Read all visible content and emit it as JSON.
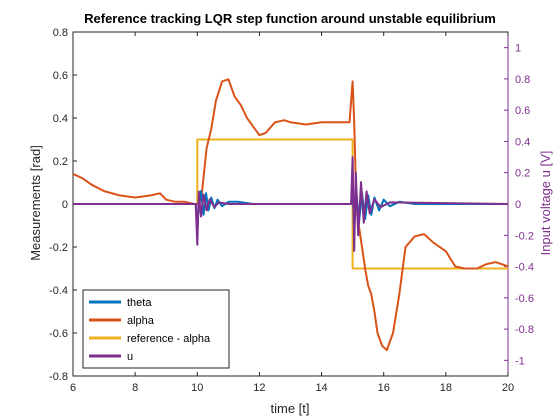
{
  "chart_data": {
    "type": "line",
    "title": "Reference tracking LQR step function around unstable equilibrium",
    "xlabel": "time [t]",
    "ylabel": "Measurements [rad]",
    "y2label": "Input voltage u [V]",
    "xlim": [
      6,
      20
    ],
    "ylim": [
      -0.8,
      0.8
    ],
    "y2lim": [
      -1.1,
      1.1
    ],
    "xticks": [
      "6",
      "8",
      "10",
      "12",
      "14",
      "16",
      "18",
      "20"
    ],
    "yticks": [
      "-0.8",
      "-0.6",
      "-0.4",
      "-0.2",
      "0",
      "0.2",
      "0.4",
      "0.6",
      "0.8"
    ],
    "y2ticks": [
      "-1",
      "-0.8",
      "-0.6",
      "-0.4",
      "-0.2",
      "0",
      "0.2",
      "0.4",
      "0.6",
      "0.8",
      "1"
    ],
    "grid": false,
    "legend_position": "bottom-left",
    "series": [
      {
        "name": "theta",
        "color": "#0072BD",
        "axis": "left",
        "x": [
          6,
          9.95,
          10.0,
          10.05,
          10.12,
          10.2,
          10.28,
          10.36,
          10.45,
          10.55,
          10.65,
          10.8,
          11.0,
          11.3,
          11.8,
          14.95,
          15.0,
          15.05,
          15.12,
          15.2,
          15.3,
          15.4,
          15.5,
          15.6,
          15.7,
          15.85,
          16.0,
          16.2,
          16.5,
          17.0,
          20
        ],
        "values": [
          0,
          0,
          -0.08,
          -0.02,
          0.06,
          -0.05,
          0.05,
          -0.03,
          0.03,
          -0.02,
          0.02,
          -0.01,
          0.01,
          0.01,
          0,
          0,
          0.07,
          -0.12,
          0.06,
          -0.09,
          0.05,
          -0.07,
          0.04,
          -0.05,
          0.03,
          -0.03,
          0.02,
          -0.01,
          0.01,
          0,
          0
        ]
      },
      {
        "name": "alpha",
        "color": "#D95319",
        "axis": "left",
        "x": [
          6,
          6.3,
          6.6,
          7.0,
          7.5,
          8.0,
          8.5,
          8.8,
          9.0,
          9.3,
          9.6,
          9.9,
          10.05,
          10.15,
          10.3,
          10.45,
          10.6,
          10.8,
          11.0,
          11.2,
          11.4,
          11.6,
          11.8,
          12.0,
          12.2,
          12.5,
          12.8,
          13.0,
          13.5,
          14.0,
          14.5,
          14.9,
          15.0,
          15.05,
          15.1,
          15.15,
          15.25,
          15.4,
          15.5,
          15.6,
          15.7,
          15.8,
          15.95,
          16.1,
          16.3,
          16.5,
          16.7,
          17.0,
          17.3,
          17.6,
          18.0,
          18.3,
          18.6,
          19.0,
          19.3,
          19.6,
          20
        ],
        "values": [
          0.14,
          0.12,
          0.09,
          0.06,
          0.04,
          0.03,
          0.04,
          0.05,
          0.02,
          0.01,
          0.01,
          0.0,
          0.0,
          0.05,
          0.26,
          0.35,
          0.48,
          0.57,
          0.58,
          0.5,
          0.46,
          0.4,
          0.36,
          0.32,
          0.33,
          0.38,
          0.39,
          0.38,
          0.37,
          0.38,
          0.38,
          0.38,
          0.57,
          0.38,
          0.1,
          -0.05,
          -0.15,
          -0.3,
          -0.38,
          -0.42,
          -0.5,
          -0.6,
          -0.66,
          -0.68,
          -0.6,
          -0.42,
          -0.2,
          -0.15,
          -0.14,
          -0.18,
          -0.22,
          -0.29,
          -0.3,
          -0.3,
          -0.28,
          -0.27,
          -0.29
        ]
      },
      {
        "name": "reference - alpha",
        "color": "#EDB120",
        "axis": "left",
        "x": [
          6,
          10,
          10,
          15,
          15,
          20
        ],
        "values": [
          0,
          0,
          0.3,
          0.3,
          -0.3,
          -0.3
        ]
      },
      {
        "name": "u",
        "color": "#7E2F8E",
        "axis": "right",
        "x": [
          6,
          9.95,
          10.0,
          10.05,
          10.12,
          10.2,
          10.3,
          10.4,
          10.55,
          10.7,
          11.0,
          14.95,
          15.0,
          15.05,
          15.1,
          15.18,
          15.27,
          15.36,
          15.45,
          15.55,
          15.7,
          15.9,
          16.2,
          20
        ],
        "values": [
          0,
          0,
          -0.26,
          0.08,
          -0.08,
          0.06,
          -0.04,
          0.03,
          -0.02,
          0.01,
          0,
          0,
          0.3,
          -0.3,
          0.2,
          -0.2,
          0.14,
          -0.12,
          0.08,
          -0.06,
          0.03,
          -0.02,
          0.01,
          0
        ]
      }
    ]
  }
}
